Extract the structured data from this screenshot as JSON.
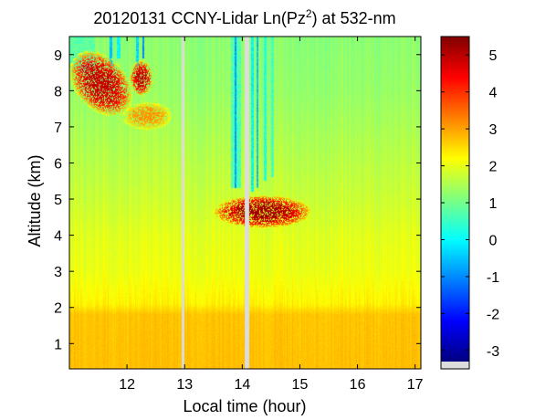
{
  "chart_data": {
    "type": "heatmap",
    "title": "20120131 CCNY-Lidar Ln(Pz",
    "title_superscript": "2",
    "title_suffix": ") at 532-nm",
    "xlabel": "Local time (hour)",
    "ylabel": "Altitude (km)",
    "xlim": [
      11.0,
      17.1
    ],
    "ylim": [
      0.3,
      9.5
    ],
    "x_ticks": [
      12,
      13,
      14,
      15,
      16,
      17
    ],
    "x_tick_labels": [
      "12",
      "13",
      "14",
      "15",
      "16",
      "17"
    ],
    "y_ticks": [
      1,
      2,
      3,
      4,
      5,
      6,
      7,
      8,
      9
    ],
    "y_tick_labels": [
      "1",
      "2",
      "3",
      "4",
      "5",
      "6",
      "7",
      "8",
      "9"
    ],
    "colorbar": {
      "colormap": "jet",
      "clim": [
        -3.3,
        5.5
      ],
      "ticks": [
        -3,
        -2,
        -1,
        0,
        1,
        2,
        3,
        4,
        5
      ],
      "tick_labels": [
        "-3",
        "-2",
        "-1",
        "0",
        "1",
        "2",
        "3",
        "4",
        "5"
      ],
      "nodata_color": "#dcdcdc"
    },
    "background_profile": [
      {
        "alt": 0.3,
        "value": 2.75
      },
      {
        "alt": 1.8,
        "value": 2.7
      },
      {
        "alt": 2.1,
        "value": 2.3
      },
      {
        "alt": 3.0,
        "value": 2.05
      },
      {
        "alt": 4.0,
        "value": 1.95
      },
      {
        "alt": 5.0,
        "value": 1.75
      },
      {
        "alt": 6.0,
        "value": 1.6
      },
      {
        "alt": 7.0,
        "value": 1.45
      },
      {
        "alt": 8.0,
        "value": 1.3
      },
      {
        "alt": 9.5,
        "value": 1.2
      }
    ],
    "data_gaps": [
      {
        "t_start": 12.95,
        "t_end": 13.0
      },
      {
        "t_start": 14.05,
        "t_end": 14.12
      }
    ],
    "low_signal_streaks": [
      {
        "t_start": 11.0,
        "t_end": 11.45,
        "alt_min": 8.5,
        "value": 0.8
      },
      {
        "t_start": 11.7,
        "t_end": 11.75,
        "alt_min": 8.7,
        "value": -0.5
      },
      {
        "t_start": 11.83,
        "t_end": 11.88,
        "alt_min": 8.9,
        "value": 0.0
      },
      {
        "t_start": 12.15,
        "t_end": 12.2,
        "alt_min": 8.7,
        "value": -0.3
      },
      {
        "t_start": 12.27,
        "t_end": 12.3,
        "alt_min": 8.9,
        "value": -1.0
      },
      {
        "t_start": 13.8,
        "t_end": 13.98,
        "alt_min": 5.3,
        "value": 0.7
      },
      {
        "t_start": 13.86,
        "t_end": 13.9,
        "alt_min": 5.3,
        "value": -0.8
      },
      {
        "t_start": 14.15,
        "t_end": 14.2,
        "alt_min": 5.2,
        "value": 0.0
      },
      {
        "t_start": 14.25,
        "t_end": 14.28,
        "alt_min": 5.3,
        "value": -0.5
      },
      {
        "t_start": 14.38,
        "t_end": 14.42,
        "alt_min": 5.5,
        "value": 0.3
      },
      {
        "t_start": 14.5,
        "t_end": 14.55,
        "alt_min": 5.6,
        "value": 0.6
      }
    ],
    "cloud_layers": [
      {
        "t_center": 11.55,
        "alt_center": 8.2,
        "t_halfwidth": 0.55,
        "alt_halfwidth": 0.85,
        "peak_value": 5.0,
        "tilt": -1.2
      },
      {
        "t_center": 12.25,
        "alt_center": 8.35,
        "t_halfwidth": 0.2,
        "alt_halfwidth": 0.5,
        "peak_value": 5.0,
        "tilt": 0.0
      },
      {
        "t_center": 12.35,
        "alt_center": 7.3,
        "t_halfwidth": 0.45,
        "alt_halfwidth": 0.4,
        "peak_value": 3.2,
        "tilt": 0.0
      },
      {
        "t_center": 14.35,
        "alt_center": 4.65,
        "t_halfwidth": 0.85,
        "alt_halfwidth": 0.45,
        "peak_value": 5.3,
        "tilt": 0.0
      }
    ]
  }
}
